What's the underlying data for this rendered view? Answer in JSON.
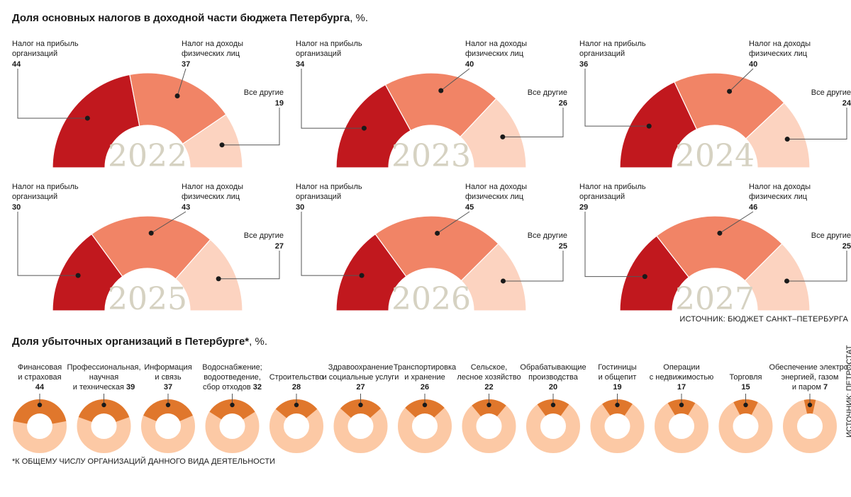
{
  "title1": {
    "text": "Доля основных налогов в доходной части бюджета Петербурга",
    "unit": ", %."
  },
  "title2": {
    "text": "Доля убыточных организаций в Петербурге*",
    "unit": ", %."
  },
  "source_bottom": "ИСТОЧНИК: БЮДЖЕТ САНКТ–ПЕТЕРБУРГА",
  "source_vertical": "ИСТОЧНИК: ПЕТРОСТАТ",
  "footnote": "*К ОБЩЕМУ ЧИСЛУ ОРГАНИЗАЦИЙ ДАННОГО ВИДА ДЕЯТЕЛЬНОСТИ",
  "labels": {
    "profit_tax": [
      "Налог на прибыль",
      "организаций"
    ],
    "income_tax": [
      "Налог на доходы",
      "физических лиц"
    ],
    "others": "Все другие"
  },
  "colors": {
    "profit_tax": "#c1181e",
    "income_tax": "#f18466",
    "others": "#fcd3c0",
    "loss_share": "#e0772c",
    "donut_rest": "#fcc9a5",
    "year_text": "#d6d2c2"
  },
  "chart_data": [
    {
      "type": "pie",
      "subtype": "semicircle-donut",
      "title": "Доля основных налогов в доходной части бюджета Петербурга, %.",
      "series_names": [
        "Налог на прибыль организаций",
        "Налог на доходы физических лиц",
        "Все другие"
      ],
      "years": [
        {
          "year": "2022",
          "values": [
            44,
            37,
            19
          ]
        },
        {
          "year": "2023",
          "values": [
            34,
            40,
            26
          ]
        },
        {
          "year": "2024",
          "values": [
            36,
            40,
            24
          ]
        },
        {
          "year": "2025",
          "values": [
            30,
            43,
            27
          ]
        },
        {
          "year": "2026",
          "values": [
            30,
            45,
            25
          ]
        },
        {
          "year": "2027",
          "values": [
            29,
            46,
            25
          ]
        }
      ]
    },
    {
      "type": "pie",
      "subtype": "donut",
      "title": "Доля убыточных организаций в Петербурге*, %.",
      "items": [
        {
          "lines": [
            "Финансовая",
            "и страховая"
          ],
          "value": 44
        },
        {
          "lines": [
            "Профессиональная,",
            "научная",
            "и техническая"
          ],
          "value": 39
        },
        {
          "lines": [
            "Информация",
            "и связь"
          ],
          "value": 37
        },
        {
          "lines": [
            "Водоснабжение;",
            "водоотведение,",
            "сбор отходов"
          ],
          "value": 32
        },
        {
          "lines": [
            "Строительство"
          ],
          "value": 28
        },
        {
          "lines": [
            "Здравоохранение",
            "и социальные услуги"
          ],
          "value": 27
        },
        {
          "lines": [
            "Транспортировка",
            "и хранение"
          ],
          "value": 26
        },
        {
          "lines": [
            "Сельское,",
            "лесное хозяйство"
          ],
          "value": 22
        },
        {
          "lines": [
            "Обрабатывающие",
            "производства"
          ],
          "value": 20
        },
        {
          "lines": [
            "Гостиницы",
            "и общепит"
          ],
          "value": 19
        },
        {
          "lines": [
            "Операции",
            "с недвижимостью"
          ],
          "value": 17
        },
        {
          "lines": [
            "Торговля"
          ],
          "value": 15
        },
        {
          "lines": [
            "Обеспечение электро-",
            "энергией, газом",
            "и паром"
          ],
          "value": 7
        }
      ]
    }
  ]
}
